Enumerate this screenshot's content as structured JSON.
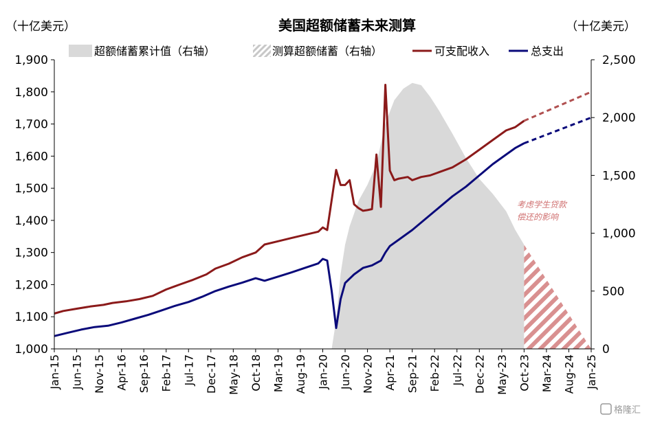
{
  "chart_data": {
    "type": "line",
    "title": "美国超额储蓄未来测算",
    "left_unit": "（十亿美元）",
    "right_unit": "（十亿美元）",
    "left_ylim": [
      1000,
      1900
    ],
    "right_ylim": [
      0,
      2500
    ],
    "left_ticks": [
      "1,000",
      "1,100",
      "1,200",
      "1,300",
      "1,400",
      "1,500",
      "1,600",
      "1,700",
      "1,800",
      "1,900"
    ],
    "right_ticks": [
      "0",
      "500",
      "1,000",
      "1,500",
      "2,000",
      "2,500"
    ],
    "x_ticks": [
      "Jan-15",
      "Jun-15",
      "Nov-15",
      "Apr-16",
      "Sep-16",
      "Feb-17",
      "Jul-17",
      "Dec-17",
      "May-18",
      "Oct-18",
      "Mar-19",
      "Aug-19",
      "Jan-20",
      "Jun-20",
      "Nov-20",
      "Apr-21",
      "Sep-21",
      "Feb-22",
      "Jul-22",
      "Dec-22",
      "May-23",
      "Oct-23",
      "Mar-24",
      "Aug-24",
      "Jan-25"
    ],
    "x_start": "2015-01",
    "x_end": "2025-01",
    "legend": [
      "超额储蓄累计值（右轴）",
      "测算超额储蓄（右轴）",
      "可支配收入",
      "总支出"
    ],
    "annotation": [
      "考虑学生贷款",
      "偿还的影响"
    ],
    "watermark": "格隆汇",
    "colors": {
      "income": "#8b1a1a",
      "income_forecast": "#b05050",
      "spending": "#0a0a7a",
      "excess_area": "#d9d9d9",
      "forecast_hatch": "#d99090"
    },
    "series": [
      {
        "name": "可支配收入",
        "axis": "left",
        "points": [
          [
            "2015-01",
            1110
          ],
          [
            "2015-03",
            1118
          ],
          [
            "2015-06",
            1125
          ],
          [
            "2015-09",
            1132
          ],
          [
            "2015-12",
            1137
          ],
          [
            "2016-02",
            1143
          ],
          [
            "2016-05",
            1148
          ],
          [
            "2016-08",
            1155
          ],
          [
            "2016-11",
            1165
          ],
          [
            "2017-02",
            1185
          ],
          [
            "2017-05",
            1200
          ],
          [
            "2017-08",
            1215
          ],
          [
            "2017-11",
            1232
          ],
          [
            "2018-01",
            1250
          ],
          [
            "2018-04",
            1265
          ],
          [
            "2018-07",
            1285
          ],
          [
            "2018-10",
            1300
          ],
          [
            "2018-12",
            1325
          ],
          [
            "2019-03",
            1335
          ],
          [
            "2019-06",
            1345
          ],
          [
            "2019-09",
            1355
          ],
          [
            "2019-12",
            1365
          ],
          [
            "2020-01",
            1378
          ],
          [
            "2020-02",
            1370
          ],
          [
            "2020-04",
            1557
          ],
          [
            "2020-05",
            1510
          ],
          [
            "2020-06",
            1510
          ],
          [
            "2020-07",
            1525
          ],
          [
            "2020-08",
            1450
          ],
          [
            "2020-09",
            1438
          ],
          [
            "2020-10",
            1430
          ],
          [
            "2020-11",
            1432
          ],
          [
            "2020-12",
            1435
          ],
          [
            "2021-01",
            1605
          ],
          [
            "2021-02",
            1442
          ],
          [
            "2021-03",
            1822
          ],
          [
            "2021-04",
            1555
          ],
          [
            "2021-05",
            1525
          ],
          [
            "2021-06",
            1530
          ],
          [
            "2021-08",
            1535
          ],
          [
            "2021-09",
            1525
          ],
          [
            "2021-11",
            1535
          ],
          [
            "2022-01",
            1540
          ],
          [
            "2022-03",
            1550
          ],
          [
            "2022-06",
            1565
          ],
          [
            "2022-09",
            1590
          ],
          [
            "2022-12",
            1620
          ],
          [
            "2023-03",
            1650
          ],
          [
            "2023-06",
            1680
          ],
          [
            "2023-08",
            1690
          ],
          [
            "2023-10",
            1710
          ]
        ]
      },
      {
        "name": "可支配收入（预测）",
        "axis": "left",
        "points": [
          [
            "2023-10",
            1710
          ],
          [
            "2025-01",
            1800
          ]
        ]
      },
      {
        "name": "总支出",
        "axis": "left",
        "points": [
          [
            "2015-01",
            1040
          ],
          [
            "2015-04",
            1050
          ],
          [
            "2015-07",
            1060
          ],
          [
            "2015-10",
            1068
          ],
          [
            "2016-01",
            1072
          ],
          [
            "2016-04",
            1082
          ],
          [
            "2016-07",
            1094
          ],
          [
            "2016-10",
            1106
          ],
          [
            "2017-01",
            1120
          ],
          [
            "2017-04",
            1134
          ],
          [
            "2017-07",
            1146
          ],
          [
            "2017-10",
            1162
          ],
          [
            "2018-01",
            1180
          ],
          [
            "2018-04",
            1194
          ],
          [
            "2018-07",
            1206
          ],
          [
            "2018-10",
            1220
          ],
          [
            "2018-12",
            1212
          ],
          [
            "2019-03",
            1225
          ],
          [
            "2019-06",
            1238
          ],
          [
            "2019-09",
            1252
          ],
          [
            "2019-12",
            1266
          ],
          [
            "2020-01",
            1280
          ],
          [
            "2020-02",
            1275
          ],
          [
            "2020-03",
            1180
          ],
          [
            "2020-04",
            1065
          ],
          [
            "2020-05",
            1155
          ],
          [
            "2020-06",
            1205
          ],
          [
            "2020-08",
            1232
          ],
          [
            "2020-10",
            1252
          ],
          [
            "2020-12",
            1260
          ],
          [
            "2021-02",
            1275
          ],
          [
            "2021-03",
            1300
          ],
          [
            "2021-04",
            1320
          ],
          [
            "2021-06",
            1340
          ],
          [
            "2021-09",
            1370
          ],
          [
            "2021-12",
            1405
          ],
          [
            "2022-03",
            1440
          ],
          [
            "2022-06",
            1475
          ],
          [
            "2022-09",
            1505
          ],
          [
            "2022-12",
            1540
          ],
          [
            "2023-03",
            1575
          ],
          [
            "2023-06",
            1605
          ],
          [
            "2023-08",
            1625
          ],
          [
            "2023-10",
            1640
          ]
        ]
      },
      {
        "name": "总支出（预测）",
        "axis": "left",
        "points": [
          [
            "2023-10",
            1640
          ],
          [
            "2025-01",
            1720
          ]
        ]
      },
      {
        "name": "超额储蓄累计值（右轴）",
        "axis": "right",
        "points": [
          [
            "2020-01",
            0
          ],
          [
            "2020-03",
            0
          ],
          [
            "2020-04",
            250
          ],
          [
            "2020-05",
            650
          ],
          [
            "2020-06",
            900
          ],
          [
            "2020-07",
            1060
          ],
          [
            "2020-09",
            1280
          ],
          [
            "2020-11",
            1420
          ],
          [
            "2021-01",
            1600
          ],
          [
            "2021-03",
            1950
          ],
          [
            "2021-05",
            2150
          ],
          [
            "2021-07",
            2250
          ],
          [
            "2021-09",
            2300
          ],
          [
            "2021-11",
            2280
          ],
          [
            "2022-01",
            2180
          ],
          [
            "2022-03",
            2060
          ],
          [
            "2022-06",
            1860
          ],
          [
            "2022-09",
            1650
          ],
          [
            "2022-12",
            1470
          ],
          [
            "2023-03",
            1340
          ],
          [
            "2023-06",
            1190
          ],
          [
            "2023-08",
            1030
          ],
          [
            "2023-10",
            900
          ],
          [
            "2023-10",
            0
          ]
        ]
      },
      {
        "name": "测算超额储蓄（右轴）",
        "axis": "right",
        "points": [
          [
            "2023-10",
            900
          ],
          [
            "2025-01",
            0
          ]
        ]
      }
    ]
  }
}
